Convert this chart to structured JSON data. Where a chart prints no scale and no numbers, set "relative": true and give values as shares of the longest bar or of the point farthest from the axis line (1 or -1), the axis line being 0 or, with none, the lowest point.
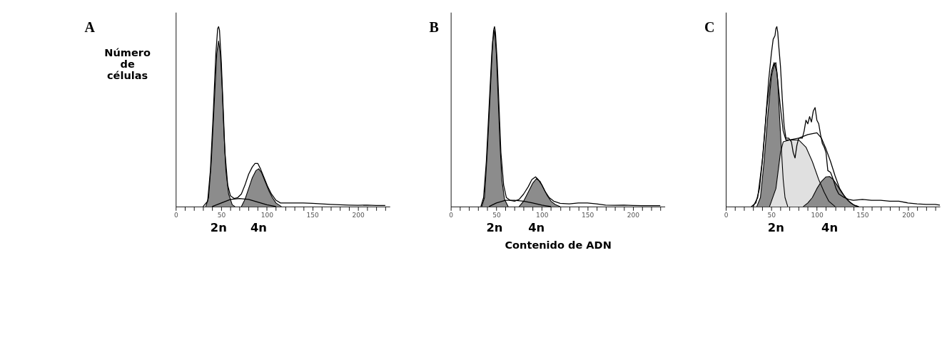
{
  "chart_data": [
    {
      "type": "area",
      "title": "A",
      "ylabel": "Número\nde\ncélulas",
      "relative": true,
      "tick_labels": "x",
      "xlim": [
        0,
        235
      ],
      "xticks": [
        0,
        {
          "value": 10,
          "label": null
        },
        {
          "value": 20,
          "label": null
        },
        {
          "value": 30,
          "label": null
        },
        {
          "value": 40,
          "label": null
        },
        50,
        {
          "value": 60,
          "label": null
        },
        {
          "value": 70,
          "label": null
        },
        {
          "value": 80,
          "label": null
        },
        {
          "value": 90,
          "label": null
        },
        100,
        {
          "value": 110,
          "label": null
        },
        {
          "value": 120,
          "label": null
        },
        {
          "value": 130,
          "label": null
        },
        {
          "value": 140,
          "label": null
        },
        150,
        {
          "value": 160,
          "label": null
        },
        {
          "value": 170,
          "label": null
        },
        {
          "value": 180,
          "label": null
        },
        {
          "value": 190,
          "label": null
        },
        200,
        {
          "value": 210,
          "label": null
        },
        {
          "value": 220,
          "label": null
        },
        {
          "value": 230,
          "label": null
        }
      ],
      "annotations": [
        "2n",
        "4n"
      ],
      "series": [
        {
          "color": "#8c8c8c",
          "x": [
            33,
            36,
            39,
            42,
            45,
            47,
            49,
            51,
            53,
            55,
            58,
            62,
            65
          ],
          "values": [
            0,
            0.05,
            0.25,
            0.55,
            0.85,
            0.92,
            0.85,
            0.65,
            0.4,
            0.2,
            0.07,
            0.01,
            0
          ]
        },
        {
          "type": "line",
          "color": "#000000",
          "x": [
            40,
            50,
            60,
            70,
            80,
            90,
            100,
            110
          ],
          "values": [
            0,
            0.02,
            0.04,
            0.045,
            0.04,
            0.025,
            0.01,
            0
          ]
        },
        {
          "color": "#8c8c8c",
          "x": [
            72,
            76,
            80,
            84,
            88,
            91,
            94,
            98,
            102,
            106,
            110,
            116
          ],
          "values": [
            0,
            0.04,
            0.1,
            0.16,
            0.2,
            0.21,
            0.19,
            0.14,
            0.09,
            0.05,
            0.02,
            0
          ]
        },
        {
          "type": "line",
          "color": "#000000",
          "x": [
            30,
            35,
            38,
            41,
            44,
            46,
            47,
            48,
            50,
            52,
            54,
            57,
            60,
            64,
            68,
            72,
            76,
            80,
            84,
            87,
            90,
            93,
            97,
            101,
            105,
            110,
            115,
            120,
            130,
            140,
            150,
            160,
            170,
            180,
            190,
            200,
            210,
            220,
            230
          ],
          "values": [
            0,
            0.03,
            0.2,
            0.5,
            0.85,
            0.99,
            1,
            0.98,
            0.8,
            0.55,
            0.3,
            0.12,
            0.06,
            0.045,
            0.05,
            0.07,
            0.12,
            0.18,
            0.22,
            0.24,
            0.24,
            0.21,
            0.16,
            0.11,
            0.07,
            0.035,
            0.02,
            0.02,
            0.02,
            0.02,
            0.018,
            0.015,
            0.012,
            0.01,
            0.008,
            0.007,
            0.008,
            0.006,
            0.006
          ]
        }
      ]
    },
    {
      "type": "area",
      "title": "B",
      "xlabel": "Contenido de ADN",
      "relative": true,
      "tick_labels": "x",
      "xlim": [
        0,
        235
      ],
      "xticks": [
        0,
        {
          "value": 10,
          "label": null
        },
        {
          "value": 20,
          "label": null
        },
        {
          "value": 30,
          "label": null
        },
        {
          "value": 40,
          "label": null
        },
        50,
        {
          "value": 60,
          "label": null
        },
        {
          "value": 70,
          "label": null
        },
        {
          "value": 80,
          "label": null
        },
        {
          "value": 90,
          "label": null
        },
        100,
        {
          "value": 110,
          "label": null
        },
        {
          "value": 120,
          "label": null
        },
        {
          "value": 130,
          "label": null
        },
        {
          "value": 140,
          "label": null
        },
        150,
        {
          "value": 160,
          "label": null
        },
        {
          "value": 170,
          "label": null
        },
        {
          "value": 180,
          "label": null
        },
        {
          "value": 190,
          "label": null
        },
        200,
        {
          "value": 210,
          "label": null
        },
        {
          "value": 220,
          "label": null
        },
        {
          "value": 230,
          "label": null
        }
      ],
      "annotations": [
        "2n",
        "4n"
      ],
      "series": [
        {
          "color": "#8c8c8c",
          "x": [
            34,
            37,
            40,
            43,
            46,
            48,
            50,
            52,
            54,
            56,
            59,
            63
          ],
          "values": [
            0,
            0.05,
            0.3,
            0.6,
            0.92,
            0.98,
            0.85,
            0.6,
            0.35,
            0.15,
            0.04,
            0
          ]
        },
        {
          "type": "line",
          "color": "#000000",
          "x": [
            42,
            50,
            60,
            70,
            80,
            90,
            100,
            110
          ],
          "values": [
            0,
            0.02,
            0.035,
            0.035,
            0.03,
            0.02,
            0.008,
            0
          ]
        },
        {
          "color": "#8c8c8c",
          "x": [
            75,
            80,
            85,
            90,
            94,
            98,
            102,
            106,
            110,
            115,
            120
          ],
          "values": [
            0,
            0.03,
            0.08,
            0.13,
            0.155,
            0.14,
            0.1,
            0.06,
            0.03,
            0.01,
            0
          ]
        },
        {
          "type": "line",
          "color": "#000000",
          "x": [
            33,
            36,
            39,
            42,
            45,
            47,
            48,
            49,
            51,
            53,
            55,
            58,
            61,
            65,
            70,
            75,
            80,
            85,
            89,
            93,
            96,
            100,
            104,
            108,
            113,
            120,
            130,
            140,
            150,
            160,
            170,
            180,
            190,
            200,
            210,
            220,
            230
          ],
          "values": [
            0,
            0.05,
            0.25,
            0.55,
            0.85,
            0.98,
            1,
            0.97,
            0.8,
            0.55,
            0.3,
            0.12,
            0.05,
            0.035,
            0.03,
            0.04,
            0.07,
            0.11,
            0.15,
            0.165,
            0.15,
            0.12,
            0.08,
            0.05,
            0.03,
            0.018,
            0.015,
            0.02,
            0.02,
            0.015,
            0.008,
            0.007,
            0.008,
            0.006,
            0.005,
            0.005,
            0.005
          ]
        }
      ]
    },
    {
      "type": "area",
      "title": "C",
      "relative": true,
      "tick_labels": "x",
      "xlim": [
        0,
        235
      ],
      "xticks": [
        0,
        {
          "value": 10,
          "label": null
        },
        {
          "value": 20,
          "label": null
        },
        {
          "value": 30,
          "label": null
        },
        {
          "value": 40,
          "label": null
        },
        50,
        {
          "value": 60,
          "label": null
        },
        {
          "value": 70,
          "label": null
        },
        {
          "value": 80,
          "label": null
        },
        {
          "value": 90,
          "label": null
        },
        100,
        {
          "value": 110,
          "label": null
        },
        {
          "value": 120,
          "label": null
        },
        {
          "value": 130,
          "label": null
        },
        {
          "value": 140,
          "label": null
        },
        150,
        {
          "value": 160,
          "label": null
        },
        {
          "value": 170,
          "label": null
        },
        {
          "value": 180,
          "label": null
        },
        {
          "value": 190,
          "label": null
        },
        200,
        {
          "value": 210,
          "label": null
        },
        {
          "value": 220,
          "label": null
        },
        {
          "value": 230,
          "label": null
        }
      ],
      "annotations": [
        "2n",
        "4n"
      ],
      "series": [
        {
          "color": "#8c8c8c",
          "x": [
            34,
            38,
            42,
            46,
            50,
            53,
            55,
            57,
            59,
            61,
            63,
            65,
            68
          ],
          "values": [
            0,
            0.05,
            0.25,
            0.5,
            0.72,
            0.79,
            0.8,
            0.7,
            0.5,
            0.32,
            0.15,
            0.05,
            0
          ]
        },
        {
          "color": "#e0e0e0",
          "x": [
            48,
            55,
            60,
            63,
            70,
            80,
            88,
            95,
            102,
            108,
            113,
            120
          ],
          "values": [
            0,
            0.1,
            0.3,
            0.36,
            0.37,
            0.37,
            0.33,
            0.25,
            0.15,
            0.08,
            0.03,
            0
          ]
        },
        {
          "color": "#8c8c8c",
          "x": [
            85,
            90,
            95,
            100,
            105,
            110,
            114,
            118,
            122,
            127,
            132,
            137,
            142,
            146
          ],
          "values": [
            0,
            0.02,
            0.05,
            0.1,
            0.14,
            0.165,
            0.167,
            0.15,
            0.12,
            0.08,
            0.045,
            0.02,
            0.005,
            0
          ]
        },
        {
          "type": "line",
          "color": "#000000",
          "x": [
            30,
            35,
            40,
            45,
            50,
            53,
            56,
            60,
            63,
            66,
            70,
            80,
            90,
            100,
            105,
            110,
            115,
            120,
            125,
            130,
            135,
            140,
            145
          ],
          "values": [
            0,
            0.05,
            0.25,
            0.55,
            0.75,
            0.8,
            0.75,
            0.55,
            0.42,
            0.37,
            0.37,
            0.38,
            0.4,
            0.41,
            0.38,
            0.32,
            0.25,
            0.17,
            0.1,
            0.06,
            0.03,
            0.01,
            0
          ]
        },
        {
          "type": "line",
          "color": "#000000",
          "x": [
            28,
            33,
            37,
            41,
            44,
            47,
            50,
            52,
            54,
            55,
            56,
            57,
            58,
            60,
            62,
            64,
            66,
            69,
            72,
            74,
            76,
            78,
            80,
            84,
            86,
            88,
            90,
            92,
            94,
            96,
            98,
            100,
            102,
            104,
            106,
            108,
            110,
            112,
            115,
            118,
            121,
            124,
            127,
            130,
            135,
            140,
            150,
            160,
            170,
            180,
            190,
            200,
            210,
            220,
            230,
            235
          ],
          "values": [
            0,
            0.02,
            0.1,
            0.3,
            0.5,
            0.7,
            0.85,
            0.93,
            0.95,
            0.99,
            1,
            0.97,
            0.9,
            0.78,
            0.6,
            0.45,
            0.38,
            0.38,
            0.36,
            0.3,
            0.27,
            0.34,
            0.38,
            0.38,
            0.42,
            0.48,
            0.46,
            0.5,
            0.47,
            0.53,
            0.55,
            0.48,
            0.46,
            0.4,
            0.35,
            0.33,
            0.3,
            0.2,
            0.19,
            0.15,
            0.1,
            0.07,
            0.06,
            0.05,
            0.04,
            0.035,
            0.04,
            0.035,
            0.035,
            0.03,
            0.03,
            0.02,
            0.015,
            0.012,
            0.012,
            0.008
          ]
        }
      ]
    }
  ]
}
